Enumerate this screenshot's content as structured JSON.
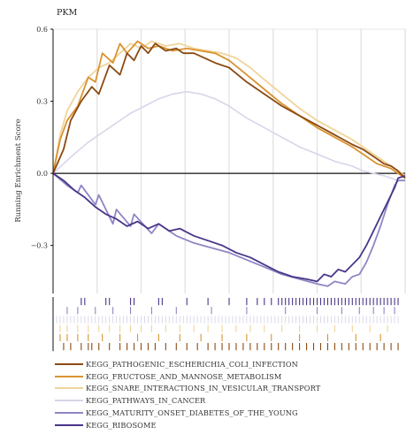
{
  "chart_data": {
    "type": "line",
    "title": "PKM",
    "ylabel": "Running Enrichment Score",
    "xlabel": "",
    "ylim": [
      -0.5,
      0.6
    ],
    "yticks": [
      0.6,
      0.3,
      0.0,
      -0.3
    ],
    "ytick_labels": [
      "0.6",
      "0.3",
      "0.0",
      "−0.3"
    ],
    "xlim": [
      0,
      100
    ],
    "grid": "vertical",
    "legend_position": "bottom",
    "series": [
      {
        "name": "KEGG_PATHOGENIC_ESCHERICHIA_COLI_INFECTION",
        "color": "#8b4a12",
        "x": [
          0,
          3,
          5,
          8,
          11,
          13,
          16,
          19,
          21,
          23,
          25,
          27,
          29,
          32,
          35,
          37,
          40,
          43,
          46,
          50,
          55,
          60,
          65,
          70,
          75,
          80,
          85,
          88,
          90,
          92,
          94,
          96,
          98,
          100
        ],
        "y": [
          0.0,
          0.1,
          0.22,
          0.3,
          0.36,
          0.33,
          0.45,
          0.41,
          0.5,
          0.47,
          0.53,
          0.5,
          0.54,
          0.51,
          0.52,
          0.5,
          0.5,
          0.48,
          0.46,
          0.44,
          0.38,
          0.33,
          0.28,
          0.24,
          0.2,
          0.16,
          0.12,
          0.1,
          0.08,
          0.06,
          0.04,
          0.03,
          0.01,
          -0.02
        ]
      },
      {
        "name": "KEGG_FRUCTOSE_AND_MANNOSE_METABOLISM",
        "color": "#d99330",
        "x": [
          0,
          2,
          4,
          7,
          10,
          12,
          14,
          17,
          19,
          21,
          24,
          27,
          30,
          34,
          38,
          42,
          46,
          50,
          55,
          60,
          65,
          70,
          75,
          80,
          85,
          88,
          90,
          92,
          94,
          96,
          98,
          100
        ],
        "y": [
          0.0,
          0.14,
          0.22,
          0.28,
          0.4,
          0.38,
          0.5,
          0.46,
          0.54,
          0.5,
          0.55,
          0.52,
          0.53,
          0.51,
          0.52,
          0.51,
          0.5,
          0.47,
          0.41,
          0.35,
          0.29,
          0.24,
          0.19,
          0.15,
          0.11,
          0.08,
          0.06,
          0.04,
          0.03,
          0.02,
          0.0,
          -0.02
        ]
      },
      {
        "name": "KEGG_SNARE_INTERACTIONS_IN_VESICULAR_TRANSPORT",
        "color": "#f0d49a",
        "x": [
          0,
          2,
          4,
          7,
          10,
          13,
          16,
          19,
          22,
          25,
          28,
          32,
          36,
          40,
          44,
          48,
          52,
          56,
          60,
          65,
          70,
          75,
          80,
          85,
          88,
          90,
          92,
          94,
          96,
          98,
          100
        ],
        "y": [
          0.0,
          0.16,
          0.26,
          0.34,
          0.4,
          0.44,
          0.46,
          0.5,
          0.54,
          0.52,
          0.55,
          0.53,
          0.54,
          0.52,
          0.51,
          0.5,
          0.48,
          0.44,
          0.39,
          0.33,
          0.27,
          0.22,
          0.18,
          0.14,
          0.11,
          0.09,
          0.07,
          0.05,
          0.03,
          0.01,
          -0.01
        ]
      },
      {
        "name": "KEGG_PATHWAYS_IN_CANCER",
        "color": "#d8d5e8",
        "x": [
          0,
          3,
          6,
          10,
          14,
          18,
          22,
          26,
          30,
          34,
          38,
          42,
          46,
          50,
          55,
          60,
          65,
          70,
          75,
          80,
          85,
          88,
          91,
          94,
          96,
          98,
          100
        ],
        "y": [
          0.0,
          0.04,
          0.08,
          0.13,
          0.17,
          0.21,
          0.25,
          0.28,
          0.31,
          0.33,
          0.34,
          0.33,
          0.31,
          0.28,
          0.23,
          0.19,
          0.15,
          0.11,
          0.08,
          0.05,
          0.03,
          0.01,
          0.0,
          -0.01,
          -0.02,
          -0.03,
          -0.03
        ]
      },
      {
        "name": "KEGG_MATURITY_ONSET_DIABETES_OF_THE_YOUNG",
        "color": "#8e86c4",
        "x": [
          0,
          4,
          7,
          8,
          12,
          13,
          17,
          18,
          22,
          23,
          28,
          30,
          35,
          40,
          45,
          50,
          55,
          60,
          65,
          70,
          75,
          78,
          80,
          83,
          85,
          87,
          89,
          91,
          93,
          95,
          97,
          98,
          100
        ],
        "y": [
          0.0,
          -0.05,
          -0.08,
          -0.05,
          -0.13,
          -0.09,
          -0.21,
          -0.15,
          -0.22,
          -0.17,
          -0.25,
          -0.21,
          -0.26,
          -0.29,
          -0.31,
          -0.33,
          -0.36,
          -0.39,
          -0.42,
          -0.44,
          -0.46,
          -0.47,
          -0.45,
          -0.46,
          -0.43,
          -0.42,
          -0.37,
          -0.3,
          -0.22,
          -0.13,
          -0.05,
          -0.03,
          -0.03
        ]
      },
      {
        "name": "KEGG_RIBOSOME",
        "color": "#4b3589",
        "x": [
          0,
          3,
          6,
          9,
          12,
          15,
          18,
          21,
          24,
          27,
          30,
          33,
          36,
          40,
          44,
          48,
          52,
          56,
          60,
          64,
          68,
          72,
          75,
          77,
          79,
          81,
          83,
          85,
          87,
          89,
          91,
          93,
          95,
          97,
          98,
          100
        ],
        "y": [
          0.0,
          -0.03,
          -0.07,
          -0.1,
          -0.14,
          -0.17,
          -0.19,
          -0.22,
          -0.2,
          -0.23,
          -0.21,
          -0.24,
          -0.23,
          -0.26,
          -0.28,
          -0.3,
          -0.33,
          -0.35,
          -0.38,
          -0.41,
          -0.43,
          -0.44,
          -0.45,
          -0.42,
          -0.43,
          -0.4,
          -0.41,
          -0.38,
          -0.35,
          -0.3,
          -0.24,
          -0.18,
          -0.12,
          -0.06,
          -0.02,
          -0.01
        ]
      }
    ],
    "hit_positions": [
      [
        3,
        5,
        8,
        10,
        11,
        13,
        16,
        19,
        21,
        23,
        25,
        27,
        29,
        32,
        35,
        38,
        41,
        44,
        46,
        48,
        50,
        52,
        54,
        56,
        58,
        60,
        62,
        64,
        66,
        68,
        70,
        72,
        74,
        76,
        78,
        80,
        82,
        84,
        86,
        88,
        90,
        92,
        94,
        96,
        98
      ],
      [
        2,
        4,
        7,
        10,
        14,
        19,
        24,
        30,
        36,
        42,
        48,
        55,
        62,
        70,
        78,
        86,
        93
      ],
      [
        2,
        4,
        7,
        10,
        13,
        16,
        19,
        22,
        25,
        28,
        32,
        36,
        40,
        44,
        48,
        52,
        56,
        60,
        65,
        70,
        75,
        80,
        85,
        90,
        95
      ],
      [
        1,
        2,
        3,
        4,
        5,
        6,
        7,
        8,
        9,
        10,
        11,
        12,
        13,
        14,
        15,
        16,
        17,
        18,
        19,
        20,
        21,
        22,
        23,
        24,
        25,
        26,
        27,
        28,
        29,
        30,
        31,
        32,
        33,
        34,
        35,
        36,
        37,
        38,
        39,
        40,
        41,
        42,
        43,
        44,
        45,
        46,
        47,
        48,
        49,
        50,
        51,
        52,
        53,
        54,
        55,
        56,
        57,
        58,
        59,
        60,
        61,
        62,
        63,
        64,
        65,
        66,
        67,
        68,
        69,
        70,
        71,
        72,
        73,
        74,
        75,
        76,
        77,
        78,
        79,
        80,
        81,
        82,
        83,
        84,
        85,
        86,
        87,
        88,
        89,
        90,
        91,
        92,
        93,
        94,
        95,
        96,
        97,
        98
      ],
      [
        4,
        7,
        12,
        17,
        22,
        28,
        35,
        45,
        55,
        66,
        75,
        82,
        87,
        91,
        94,
        97
      ],
      [
        8,
        9,
        15,
        16,
        22,
        23,
        30,
        31,
        38,
        44,
        50,
        55,
        58,
        60,
        62,
        64,
        65,
        66,
        67,
        68,
        69,
        70,
        71,
        72,
        73,
        74,
        75,
        76,
        77,
        78,
        79,
        80,
        81,
        82,
        83,
        84,
        85,
        86,
        87,
        88,
        89,
        90,
        91,
        92,
        93,
        94,
        95,
        96,
        97,
        98
      ]
    ]
  }
}
